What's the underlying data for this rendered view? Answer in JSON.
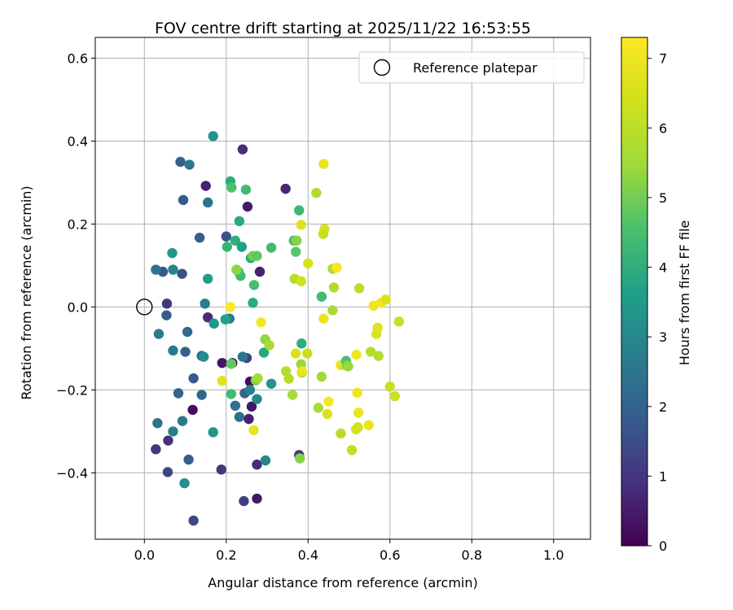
{
  "chart_data": {
    "type": "scatter",
    "title": "FOV centre drift starting at 2025/11/22 16:53:55",
    "xlabel": "Angular distance from reference (arcmin)",
    "ylabel": "Rotation from reference (arcmin)",
    "xlim": [
      -0.12,
      1.09
    ],
    "ylim": [
      -0.56,
      0.65
    ],
    "x_ticks": [
      0.0,
      0.2,
      0.4,
      0.6,
      0.8,
      1.0
    ],
    "x_tick_labels": [
      "0.0",
      "0.2",
      "0.4",
      "0.6",
      "0.8",
      "1.0"
    ],
    "y_ticks": [
      -0.4,
      -0.2,
      0.0,
      0.2,
      0.4,
      0.6
    ],
    "y_tick_labels": [
      "−0.4",
      "−0.2",
      "0.0",
      "0.2",
      "0.4",
      "0.6"
    ],
    "grid": true,
    "legend": {
      "placement": "top-right",
      "entries": [
        "Reference platepar"
      ]
    },
    "reference_point": {
      "x": 0.0,
      "y": 0.0,
      "marker": "open-circle"
    },
    "colorbar": {
      "label": "Hours from first FF file",
      "colormap": "viridis",
      "range": [
        0,
        7.3
      ],
      "ticks": [
        0,
        1,
        2,
        3,
        4,
        5,
        6,
        7
      ],
      "tick_labels": [
        "0",
        "1",
        "2",
        "3",
        "4",
        "5",
        "6",
        "7"
      ]
    },
    "points": [
      [
        0.24,
        0.38,
        0.8
      ],
      [
        0.345,
        0.285,
        0.7
      ],
      [
        0.15,
        0.292,
        0.6
      ],
      [
        0.252,
        0.242,
        0.5
      ],
      [
        0.282,
        0.085,
        0.6
      ],
      [
        0.19,
        -0.135,
        0.4
      ],
      [
        0.215,
        -0.135,
        0.5
      ],
      [
        0.258,
        -0.18,
        0.2
      ],
      [
        0.262,
        -0.24,
        0.4
      ],
      [
        0.255,
        -0.27,
        0.6
      ],
      [
        0.118,
        -0.248,
        0.2
      ],
      [
        0.058,
        -0.322,
        0.9
      ],
      [
        0.028,
        -0.343,
        1.0
      ],
      [
        0.188,
        -0.392,
        1.0
      ],
      [
        0.275,
        -0.38,
        0.8
      ],
      [
        0.275,
        -0.462,
        0.4
      ],
      [
        0.243,
        -0.468,
        1.2
      ],
      [
        0.12,
        -0.515,
        1.4
      ],
      [
        0.057,
        -0.398,
        1.3
      ],
      [
        0.378,
        -0.357,
        1.1
      ],
      [
        0.25,
        -0.123,
        1.3
      ],
      [
        0.155,
        -0.025,
        0.8
      ],
      [
        0.055,
        0.008,
        1.0
      ],
      [
        0.054,
        -0.02,
        1.8
      ],
      [
        0.045,
        0.085,
        1.7
      ],
      [
        0.092,
        0.08,
        1.6
      ],
      [
        0.095,
        0.258,
        1.8
      ],
      [
        0.088,
        0.35,
        1.9
      ],
      [
        0.11,
        0.343,
        2.5
      ],
      [
        0.155,
        0.252,
        2.4
      ],
      [
        0.135,
        0.167,
        1.9
      ],
      [
        0.2,
        0.17,
        1.6
      ],
      [
        0.108,
        -0.368,
        1.9
      ],
      [
        0.105,
        -0.06,
        2.2
      ],
      [
        0.1,
        -0.108,
        2.0
      ],
      [
        0.12,
        -0.172,
        1.8
      ],
      [
        0.083,
        -0.208,
        2.0
      ],
      [
        0.14,
        -0.212,
        2.1
      ],
      [
        0.14,
        -0.118,
        2.2
      ],
      [
        0.24,
        -0.12,
        2.5
      ],
      [
        0.245,
        -0.208,
        2.0
      ],
      [
        0.222,
        -0.238,
        2.4
      ],
      [
        0.232,
        -0.265,
        2.3
      ],
      [
        0.093,
        -0.275,
        2.6
      ],
      [
        0.032,
        -0.28,
        2.4
      ],
      [
        0.07,
        -0.3,
        2.7
      ],
      [
        0.035,
        -0.065,
        2.6
      ],
      [
        0.028,
        0.09,
        2.5
      ],
      [
        0.07,
        0.09,
        2.9
      ],
      [
        0.07,
        -0.105,
        2.6
      ],
      [
        0.145,
        -0.12,
        3.1
      ],
      [
        0.148,
        0.008,
        2.7
      ],
      [
        0.17,
        -0.04,
        3.5
      ],
      [
        0.208,
        -0.028,
        2.6
      ],
      [
        0.198,
        -0.03,
        3.7
      ],
      [
        0.258,
        -0.2,
        2.8
      ],
      [
        0.275,
        -0.222,
        3.0
      ],
      [
        0.296,
        -0.37,
        2.9
      ],
      [
        0.098,
        -0.425,
        3.2
      ],
      [
        0.168,
        -0.302,
        3.4
      ],
      [
        0.068,
        0.13,
        3.4
      ],
      [
        0.155,
        0.068,
        3.6
      ],
      [
        0.168,
        0.412,
        3.3
      ],
      [
        0.21,
        0.303,
        3.9
      ],
      [
        0.213,
        0.288,
        4.6
      ],
      [
        0.232,
        0.207,
        3.9
      ],
      [
        0.248,
        0.283,
        4.4
      ],
      [
        0.222,
        0.16,
        4.0
      ],
      [
        0.202,
        0.145,
        4.2
      ],
      [
        0.238,
        0.145,
        3.6
      ],
      [
        0.26,
        0.118,
        3.9
      ],
      [
        0.23,
        0.085,
        4.3
      ],
      [
        0.235,
        0.075,
        4.4
      ],
      [
        0.268,
        0.053,
        4.5
      ],
      [
        0.265,
        0.01,
        3.9
      ],
      [
        0.31,
        0.143,
        4.4
      ],
      [
        0.265,
        0.123,
        5.0
      ],
      [
        0.275,
        0.123,
        4.8
      ],
      [
        0.292,
        -0.11,
        3.8
      ],
      [
        0.31,
        -0.185,
        3.3
      ],
      [
        0.212,
        -0.137,
        4.8
      ],
      [
        0.212,
        -0.21,
        4.4
      ],
      [
        0.272,
        -0.177,
        5.1
      ],
      [
        0.277,
        -0.172,
        5.5
      ],
      [
        0.225,
        0.09,
        5.3
      ],
      [
        0.295,
        -0.078,
        5.3
      ],
      [
        0.305,
        -0.092,
        5.6
      ],
      [
        0.346,
        -0.155,
        5.8
      ],
      [
        0.353,
        -0.173,
        5.9
      ],
      [
        0.362,
        -0.212,
        5.6
      ],
      [
        0.367,
        0.068,
        5.9
      ],
      [
        0.365,
        0.16,
        4.5
      ],
      [
        0.37,
        0.133,
        4.7
      ],
      [
        0.372,
        0.16,
        5.2
      ],
      [
        0.378,
        0.233,
        4.3
      ],
      [
        0.384,
        -0.088,
        4.0
      ],
      [
        0.383,
        -0.138,
        5.4
      ],
      [
        0.385,
        -0.158,
        5.5
      ],
      [
        0.38,
        -0.365,
        5.2
      ],
      [
        0.42,
        0.275,
        5.8
      ],
      [
        0.383,
        0.198,
        6.7
      ],
      [
        0.383,
        0.062,
        6.4
      ],
      [
        0.4,
        0.105,
        6.5
      ],
      [
        0.398,
        -0.112,
        6.2
      ],
      [
        0.37,
        -0.112,
        6.6
      ],
      [
        0.385,
        -0.155,
        6.9
      ],
      [
        0.433,
        0.025,
        4.4
      ],
      [
        0.46,
        0.092,
        5.7
      ],
      [
        0.463,
        0.047,
        5.8
      ],
      [
        0.46,
        -0.008,
        5.6
      ],
      [
        0.44,
        0.188,
        6.5
      ],
      [
        0.437,
        0.176,
        6.2
      ],
      [
        0.438,
        0.345,
        6.9
      ],
      [
        0.438,
        -0.028,
        7.0
      ],
      [
        0.433,
        -0.168,
        5.5
      ],
      [
        0.425,
        -0.243,
        5.6
      ],
      [
        0.447,
        -0.258,
        6.6
      ],
      [
        0.45,
        -0.228,
        7.1
      ],
      [
        0.48,
        -0.14,
        6.9
      ],
      [
        0.487,
        -0.14,
        6.7
      ],
      [
        0.48,
        -0.305,
        5.9
      ],
      [
        0.47,
        0.095,
        7.2
      ],
      [
        0.493,
        -0.13,
        4.5
      ],
      [
        0.495,
        -0.14,
        4.9
      ],
      [
        0.498,
        -0.143,
        5.4
      ],
      [
        0.507,
        -0.345,
        6.1
      ],
      [
        0.517,
        -0.295,
        6.6
      ],
      [
        0.522,
        -0.29,
        6.4
      ],
      [
        0.525,
        0.045,
        6.0
      ],
      [
        0.523,
        -0.255,
        6.9
      ],
      [
        0.52,
        -0.207,
        7.0
      ],
      [
        0.518,
        -0.115,
        7.1
      ],
      [
        0.548,
        -0.285,
        6.9
      ],
      [
        0.553,
        -0.108,
        5.9
      ],
      [
        0.567,
        -0.065,
        6.6
      ],
      [
        0.57,
        -0.05,
        6.7
      ],
      [
        0.572,
        -0.118,
        5.8
      ],
      [
        0.56,
        0.003,
        7.0
      ],
      [
        0.578,
        0.01,
        7.1
      ],
      [
        0.59,
        0.018,
        6.6
      ],
      [
        0.6,
        -0.192,
        6.2
      ],
      [
        0.612,
        -0.215,
        6.3
      ],
      [
        0.622,
        -0.035,
        6.2
      ],
      [
        0.21,
        0.0,
        7.3
      ],
      [
        0.285,
        -0.037,
        7.1
      ],
      [
        0.267,
        -0.297,
        6.8
      ],
      [
        0.19,
        -0.178,
        6.7
      ]
    ]
  }
}
